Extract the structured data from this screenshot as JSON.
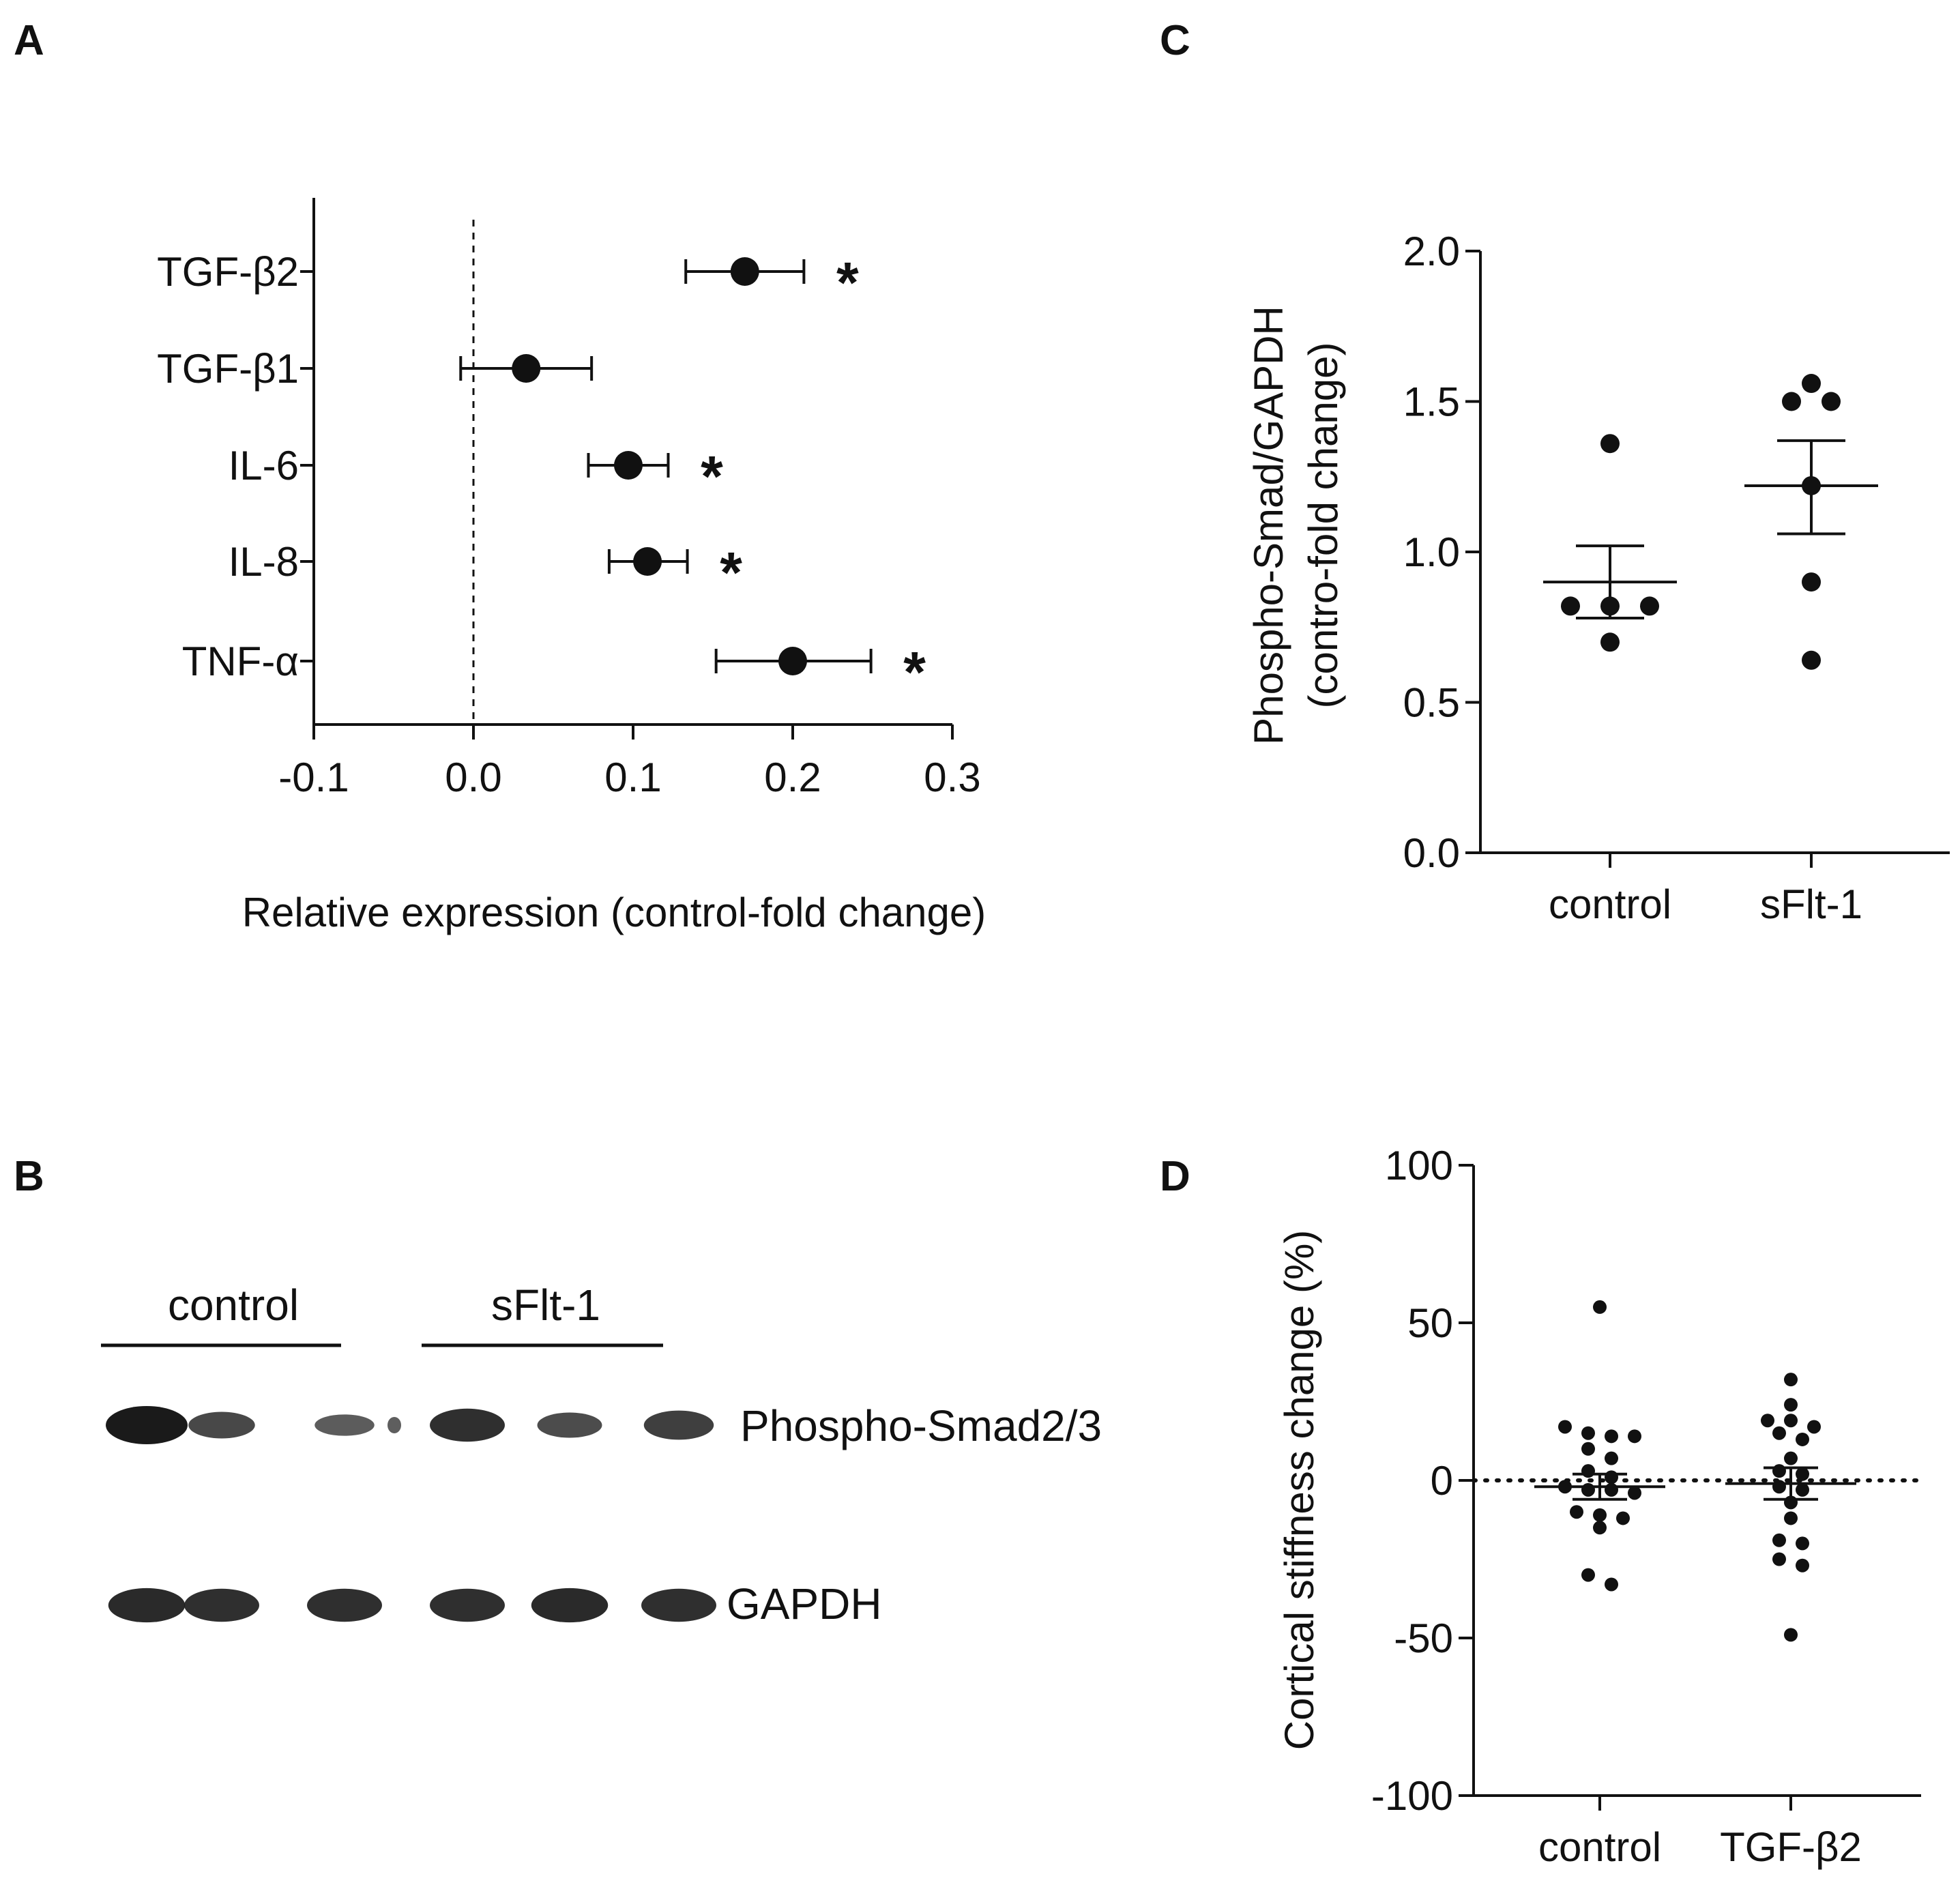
{
  "figure": {
    "colors": {
      "ink": "#111111",
      "band": "#1a1a1a",
      "background": "#ffffff"
    }
  },
  "chart_data": [
    {
      "panel": "A",
      "type": "scatter",
      "orientation": "horizontal",
      "title": "",
      "xlabel": "Relative expression (control-fold change)",
      "ylabel": "",
      "xlim": [
        -0.1,
        0.3
      ],
      "xticks": [
        -0.1,
        0.0,
        0.1,
        0.2,
        0.3
      ],
      "xtick_labels": [
        "-0.1",
        "0.0",
        "0.1",
        "0.2",
        "0.3"
      ],
      "reference_line": {
        "x": 0.0,
        "style": "dashed"
      },
      "categories": [
        "TGF-β2",
        "TGF-β1",
        "IL-6",
        "IL-8",
        "TNF-α"
      ],
      "values": [
        0.17,
        0.033,
        0.097,
        0.109,
        0.2
      ],
      "error_low": [
        0.133,
        -0.008,
        0.072,
        0.085,
        0.152
      ],
      "error_high": [
        0.207,
        0.074,
        0.122,
        0.134,
        0.249
      ],
      "significance": [
        "*",
        "",
        "*",
        "*",
        "*"
      ]
    },
    {
      "panel": "C",
      "type": "scatter",
      "title": "",
      "xlabel": "",
      "ylabel_line1": "Phospho-Smad/GAPDH",
      "ylabel_line2": "(contro-fold change)",
      "ylim": [
        0.0,
        2.0
      ],
      "yticks": [
        0.0,
        0.5,
        1.0,
        1.5,
        2.0
      ],
      "ytick_labels": [
        "0.0",
        "0.5",
        "1.0",
        "1.5",
        "2.0"
      ],
      "categories": [
        "control",
        "sFlt-1"
      ],
      "series": [
        {
          "name": "control",
          "mean": 0.9,
          "sem_low": 0.78,
          "sem_high": 1.02,
          "points": [
            1.36,
            0.82,
            0.82,
            0.82,
            0.7
          ]
        },
        {
          "name": "sFlt-1",
          "mean": 1.22,
          "sem_low": 1.06,
          "sem_high": 1.37,
          "points": [
            1.56,
            1.5,
            1.5,
            1.22,
            0.9,
            0.64
          ]
        }
      ]
    },
    {
      "panel": "D",
      "type": "scatter",
      "title": "",
      "xlabel": "",
      "ylabel": "Cortical stiffness change (%)",
      "ylim": [
        -100,
        100
      ],
      "yticks": [
        -100,
        -50,
        0,
        50,
        100
      ],
      "ytick_labels": [
        "-100",
        "-50",
        "0",
        "50",
        "100"
      ],
      "reference_line": {
        "y": 0,
        "style": "dotted"
      },
      "categories": [
        "control",
        "TGF-β2"
      ],
      "series": [
        {
          "name": "control",
          "mean": -2,
          "sem_low": -6,
          "sem_high": 2,
          "points": [
            55,
            17,
            15,
            14,
            14,
            10,
            7,
            3,
            1,
            -2,
            -3,
            -3,
            -4,
            -10,
            -11,
            -12,
            -15,
            -30,
            -33
          ]
        },
        {
          "name": "TGF-β2",
          "mean": -1,
          "sem_low": -6,
          "sem_high": 4,
          "points": [
            32,
            24,
            19,
            19,
            17,
            15,
            13,
            7,
            3,
            2,
            -2,
            -3,
            -7,
            -12,
            -19,
            -20,
            -25,
            -27,
            -49
          ]
        }
      ]
    },
    {
      "panel": "B",
      "type": "western_blot",
      "groups": [
        "control",
        "sFlt-1"
      ],
      "lanes_per_group": 3,
      "rows": [
        {
          "label": "Phospho-Smad2/3",
          "intensity": [
            1.0,
            0.55,
            0.35,
            0.8,
            0.5,
            0.65
          ]
        },
        {
          "label": "GAPDH",
          "intensity": [
            0.85,
            0.8,
            0.8,
            0.8,
            0.85,
            0.8
          ]
        }
      ]
    }
  ]
}
